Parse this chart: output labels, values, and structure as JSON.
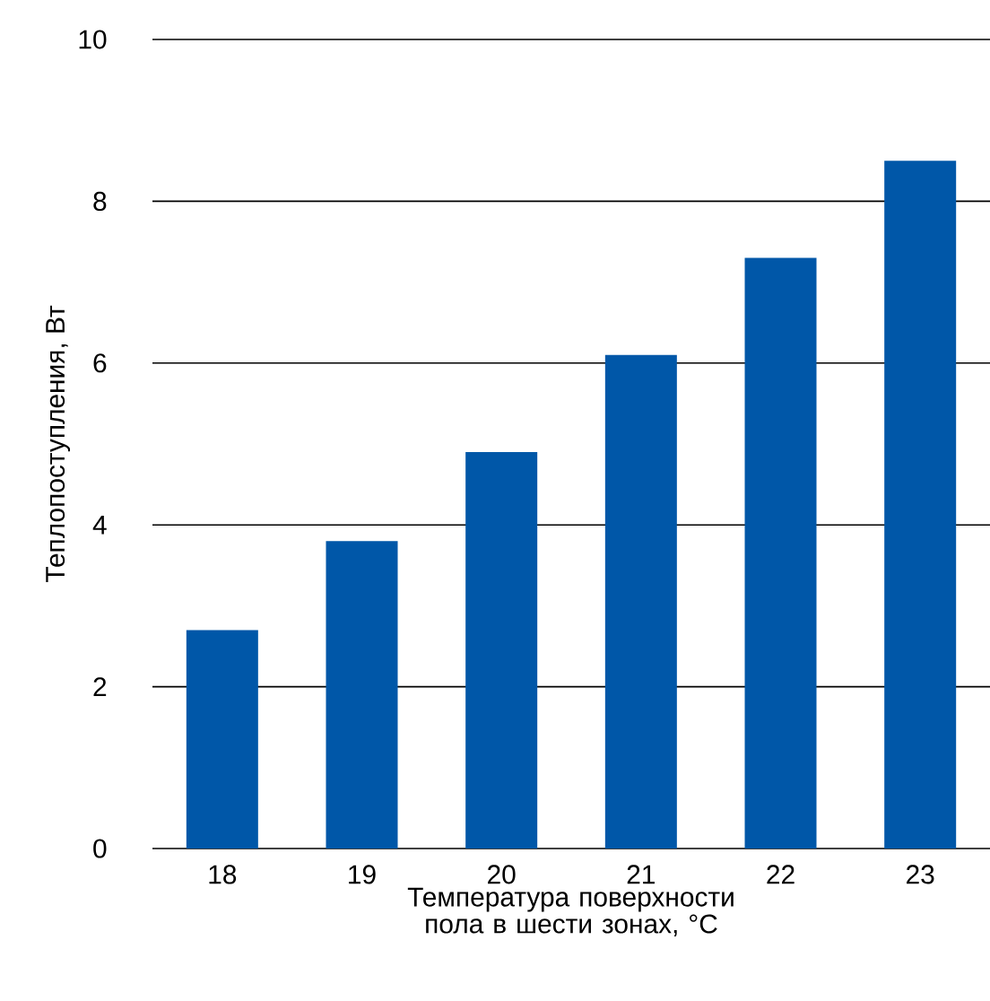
{
  "chart_data": {
    "type": "bar",
    "xlabel": "Температура поверхности пола в шести зонах, °C",
    "ylabel": "Теплопоступления, Вт",
    "categories": [
      "18",
      "19",
      "20",
      "21",
      "22",
      "23"
    ],
    "values": [
      2.7,
      3.8,
      4.9,
      6.1,
      7.3,
      8.5
    ],
    "color": "#0057a8",
    "ylim": [
      0,
      10
    ],
    "yticks": [
      0,
      2,
      4,
      6,
      8,
      10
    ],
    "grid": "y"
  }
}
